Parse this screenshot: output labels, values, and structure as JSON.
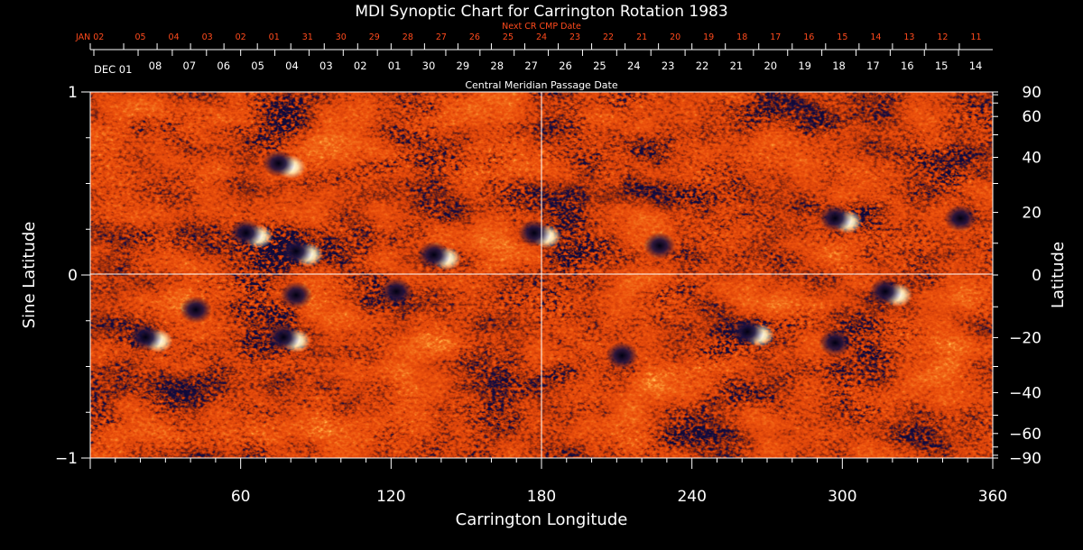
{
  "chart_data": {
    "type": "heatmap",
    "title": "MDI Synoptic Chart for Carrington Rotation 1983",
    "xlabel": "Carrington Longitude",
    "ylabel_left": "Sine Latitude",
    "ylabel_right": "Latitude",
    "top_axis_label": "Central Meridian Passage Date",
    "next_cr_label": "Next CR CMP Date",
    "xlim": [
      0,
      360
    ],
    "ylim": [
      -1,
      1
    ],
    "x_ticks": [
      60,
      120,
      180,
      240,
      300,
      360
    ],
    "y_ticks_left": [
      {
        "value": 1,
        "label": "1"
      },
      {
        "value": 0,
        "label": "0"
      },
      {
        "value": -1,
        "label": "−1"
      }
    ],
    "y_ticks_right": [
      {
        "lat": 90,
        "label": "90"
      },
      {
        "lat": 60,
        "label": "60"
      },
      {
        "lat": 40,
        "label": "40"
      },
      {
        "lat": 20,
        "label": "20"
      },
      {
        "lat": 0,
        "label": "0"
      },
      {
        "lat": -20,
        "label": "−20"
      },
      {
        "lat": -40,
        "label": "−40"
      },
      {
        "lat": -60,
        "label": "−60"
      },
      {
        "lat": -90,
        "label": "−90"
      }
    ],
    "cmp_dates_current": [
      "DEC 01",
      "08",
      "07",
      "06",
      "05",
      "04",
      "03",
      "02",
      "01",
      "30",
      "29",
      "28",
      "27",
      "26",
      "25",
      "24",
      "23",
      "22",
      "21",
      "20",
      "19",
      "18",
      "17",
      "16",
      "15",
      "14"
    ],
    "cmp_dates_next": [
      "JAN 02",
      "05",
      "04",
      "03",
      "02",
      "01",
      "31",
      "30",
      "29",
      "28",
      "27",
      "26",
      "25",
      "24",
      "23",
      "22",
      "21",
      "20",
      "19",
      "18",
      "17",
      "16",
      "15",
      "14",
      "13",
      "12",
      "11"
    ],
    "grid_lines": {
      "longitude": 180,
      "sine_latitude": 0
    },
    "colors": {
      "background": "#000000",
      "text": "#ffffff",
      "next_cr_text": "#ff4a1c",
      "field_neutral": "#e8480e",
      "field_positive": "#fff1b0",
      "field_negative": "#1a1040"
    },
    "active_regions": [
      {
        "lon": 78,
        "sinlat": 0.6,
        "polarity": "mixed"
      },
      {
        "lon": 65,
        "sinlat": 0.22,
        "polarity": "mixed"
      },
      {
        "lon": 85,
        "sinlat": 0.12,
        "polarity": "mixed"
      },
      {
        "lon": 140,
        "sinlat": 0.1,
        "polarity": "mixed"
      },
      {
        "lon": 180,
        "sinlat": 0.22,
        "polarity": "mixed"
      },
      {
        "lon": 230,
        "sinlat": 0.15,
        "polarity": "negative"
      },
      {
        "lon": 300,
        "sinlat": 0.3,
        "polarity": "mixed"
      },
      {
        "lon": 350,
        "sinlat": 0.3,
        "polarity": "negative"
      },
      {
        "lon": 85,
        "sinlat": -0.12,
        "polarity": "negative"
      },
      {
        "lon": 80,
        "sinlat": -0.35,
        "polarity": "mixed"
      },
      {
        "lon": 25,
        "sinlat": -0.35,
        "polarity": "mixed"
      },
      {
        "lon": 45,
        "sinlat": -0.2,
        "polarity": "negative"
      },
      {
        "lon": 125,
        "sinlat": -0.1,
        "polarity": "negative"
      },
      {
        "lon": 265,
        "sinlat": -0.32,
        "polarity": "mixed"
      },
      {
        "lon": 300,
        "sinlat": -0.38,
        "polarity": "negative"
      },
      {
        "lon": 320,
        "sinlat": -0.1,
        "polarity": "mixed"
      },
      {
        "lon": 215,
        "sinlat": -0.45,
        "polarity": "negative"
      }
    ]
  }
}
